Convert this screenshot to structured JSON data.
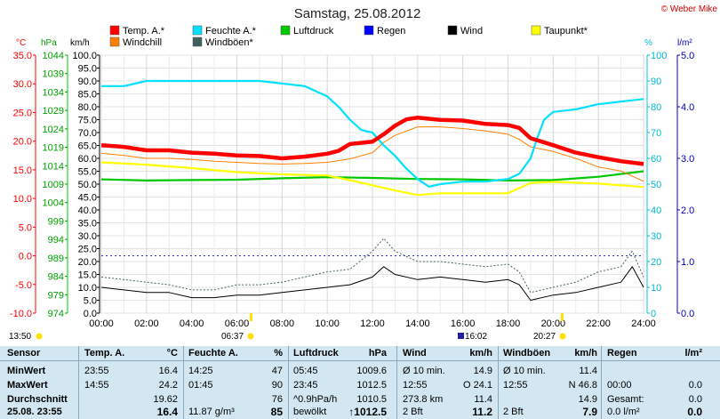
{
  "title": "Samstag, 25.08.2012",
  "copyright": "© Weber Mike",
  "axis_units": {
    "temp": "°C",
    "pressure": "hPa",
    "wind": "km/h",
    "humidity": "%",
    "rain": "l/m²"
  },
  "sun": {
    "rise_left": "13:50",
    "sunrise": "06:37",
    "sunset": "20:27",
    "moon": "16:02"
  },
  "colors": {
    "temp": "#ff0000",
    "humidity": "#00e0ff",
    "pressure": "#00c800",
    "rain": "#0000ff",
    "wind": "#000000",
    "dewpoint": "#ffff00",
    "windchill": "#ff8000",
    "gust": "#406060",
    "pressure_axis": "#00c800",
    "temp_axis": "#ff0000",
    "rain_axis": "#0000c0"
  },
  "chart_data": {
    "type": "line",
    "title": "Samstag, 25.08.2012",
    "x_ticks": [
      "00:00",
      "02:00",
      "04:00",
      "06:00",
      "08:00",
      "10:00",
      "12:00",
      "14:00",
      "16:00",
      "18:00",
      "20:00",
      "22:00",
      "24:00"
    ],
    "left_axes": {
      "temp_ticks": [
        "35.0",
        "30.0",
        "25.0",
        "20.0",
        "15.0",
        "10.0",
        "5.0",
        "0.0",
        "-5.0",
        "-10.0"
      ],
      "temp_range": [
        -10,
        35
      ],
      "pressure_ticks": [
        "1044",
        "1039",
        "1034",
        "1029",
        "1024",
        "1019",
        "1014",
        "1009",
        "1004",
        "999",
        "994",
        "989",
        "984",
        "979",
        "974"
      ],
      "pressure_range": [
        974,
        1044
      ],
      "wind_ticks": [
        "100.0",
        "95.0",
        "90.0",
        "85.0",
        "80.0",
        "75.0",
        "70.0",
        "65.0",
        "60.0",
        "55.0",
        "50.0",
        "45.0",
        "40.0",
        "35.0",
        "30.0",
        "25.0",
        "20.0",
        "15.0",
        "10.0",
        "5.0",
        "0.0"
      ],
      "wind_range": [
        0,
        100
      ]
    },
    "right_axes": {
      "humidity_ticks": [
        "100",
        "90",
        "80",
        "70",
        "60",
        "50",
        "40",
        "30",
        "20",
        "10",
        "0"
      ],
      "humidity_range": [
        0,
        100
      ],
      "rain_ticks": [
        "5.0",
        "4.0",
        "3.0",
        "2.0",
        "1.0",
        "0.0"
      ],
      "rain_range": [
        0,
        5
      ]
    },
    "legend": [
      {
        "key": "temp",
        "label": "Temp. A.*"
      },
      {
        "key": "humidity",
        "label": "Feuchte A.*"
      },
      {
        "key": "pressure",
        "label": "Luftdruck"
      },
      {
        "key": "rain",
        "label": "Regen"
      },
      {
        "key": "wind",
        "label": "Wind"
      },
      {
        "key": "dewpoint",
        "label": "Taupunkt*"
      },
      {
        "key": "windchill",
        "label": "Windchill"
      },
      {
        "key": "gust",
        "label": "Windböen*"
      }
    ],
    "series": [
      {
        "name": "Temp. A.*",
        "key": "temp",
        "axis": "temp",
        "x": [
          0,
          1,
          2,
          3,
          4,
          5,
          6,
          7,
          8,
          9,
          10,
          10.5,
          11,
          12,
          12.5,
          13,
          13.5,
          14,
          15,
          16,
          17,
          18,
          18.5,
          19,
          20,
          21,
          22,
          23,
          24
        ],
        "values": [
          19.3,
          19.0,
          18.4,
          18.4,
          18.0,
          17.8,
          17.5,
          17.4,
          17.0,
          17.3,
          17.8,
          18.3,
          19.5,
          19.9,
          21.2,
          22.7,
          23.8,
          24.1,
          23.7,
          23.6,
          23.0,
          22.8,
          22.3,
          20.5,
          19.3,
          18.0,
          17.2,
          16.5,
          16.0
        ]
      },
      {
        "name": "Windchill",
        "key": "windchill",
        "axis": "temp",
        "x": [
          0,
          1,
          2,
          3,
          4,
          5,
          6,
          7,
          8,
          9,
          10,
          11,
          12,
          12.5,
          13,
          14,
          15,
          16,
          17,
          18,
          18.5,
          19,
          20,
          21,
          22,
          23,
          24
        ],
        "values": [
          17.9,
          17.5,
          17.0,
          17.0,
          16.8,
          16.5,
          16.3,
          16.1,
          16.0,
          16.1,
          16.3,
          16.9,
          18.0,
          19.8,
          21.0,
          22.5,
          22.5,
          22.2,
          21.8,
          21.2,
          20.3,
          19.0,
          18.2,
          17.0,
          15.5,
          14.8,
          13.0
        ]
      },
      {
        "name": "Taupunkt*",
        "key": "dewpoint",
        "axis": "temp",
        "x": [
          0,
          2,
          4,
          6,
          8,
          10,
          11,
          12,
          13,
          14,
          15,
          16,
          17,
          18,
          19,
          20,
          22,
          24
        ],
        "values": [
          16.3,
          15.9,
          15.3,
          14.6,
          14.2,
          14.0,
          13.2,
          12.3,
          11.4,
          10.6,
          10.9,
          10.9,
          10.9,
          10.9,
          12.7,
          12.9,
          12.6,
          12.0
        ]
      },
      {
        "name": "Luftdruck",
        "key": "pressure",
        "axis": "pressure",
        "x": [
          0,
          2,
          4,
          6,
          8,
          10,
          12,
          14,
          16,
          18,
          20,
          22,
          24
        ],
        "values": [
          1010.3,
          1010.0,
          1010.1,
          1010.2,
          1010.6,
          1010.9,
          1010.7,
          1010.4,
          1010.3,
          1010.0,
          1010.1,
          1011.0,
          1012.5
        ]
      },
      {
        "name": "Feuchte A.*",
        "key": "humidity",
        "axis": "humidity",
        "x": [
          0,
          1,
          2,
          3,
          4,
          5,
          6,
          7,
          8,
          9,
          9.5,
          10,
          10.5,
          11,
          11.5,
          12,
          12.5,
          13,
          13.5,
          14,
          14.5,
          15,
          16,
          17,
          18,
          18.5,
          19,
          19.3,
          19.6,
          20,
          21,
          22,
          23,
          24
        ],
        "values": [
          88,
          88,
          90,
          90,
          90,
          90,
          90,
          90,
          89,
          88,
          86,
          84,
          80,
          75,
          71,
          70,
          65,
          61,
          56,
          52,
          49,
          50,
          51,
          51,
          52,
          54,
          60,
          68,
          75,
          78,
          79,
          81,
          82,
          83
        ]
      },
      {
        "name": "Wind",
        "key": "wind",
        "axis": "wind",
        "x": [
          0,
          1,
          2,
          3,
          4,
          5,
          6,
          7,
          8,
          9,
          10,
          11,
          12,
          12.5,
          13,
          14,
          15,
          16,
          17,
          18,
          18.5,
          19,
          20,
          21,
          22,
          23,
          23.5,
          24
        ],
        "values": [
          10,
          9,
          8,
          8,
          6,
          6,
          7,
          7,
          8,
          9,
          10,
          11,
          14,
          18,
          15,
          13,
          14,
          13,
          12,
          13,
          11,
          5,
          7,
          8,
          10,
          12,
          18,
          10
        ]
      },
      {
        "name": "Windböen*",
        "key": "gust",
        "axis": "wind",
        "x": [
          0,
          1,
          2,
          3,
          4,
          5,
          6,
          7,
          8,
          9,
          10,
          11,
          12,
          12.5,
          13,
          14,
          15,
          16,
          17,
          18,
          18.5,
          19,
          20,
          21,
          22,
          23,
          23.5,
          24
        ],
        "values": [
          14,
          13,
          12,
          11,
          9,
          9,
          11,
          11,
          12,
          14,
          16,
          17,
          24,
          29,
          24,
          20,
          20,
          19,
          18,
          19,
          16,
          8,
          10,
          12,
          16,
          18,
          24,
          14
        ]
      }
    ],
    "xlabel": "",
    "ylabel": "",
    "grid": true,
    "legend_position": "top"
  },
  "stats": {
    "headers": {
      "sensor": "Sensor",
      "temp": "Temp. A.",
      "temp_unit": "°C",
      "hum": "Feuchte A.",
      "hum_unit": "%",
      "press": "Luftdruck",
      "press_unit": "hPa",
      "wind": "Wind",
      "wind_unit": "km/h",
      "gust": "Windböen",
      "gust_unit": "km/h",
      "rain": "Regen",
      "rain_unit": "l/m²"
    },
    "rows": [
      {
        "label": "MinWert",
        "temp_time": "23:55",
        "temp_val": "16.4",
        "hum_time": "14:25",
        "hum_val": "47",
        "press_time": "05:45",
        "press_val": "1009.6",
        "wind_label": "Ø 10 min.",
        "wind_val": "14.9",
        "gust_label": "Ø 10 min.",
        "gust_val": "11.4",
        "rain_label": "",
        "rain_val": ""
      },
      {
        "label": "MaxWert",
        "temp_time": "14:55",
        "temp_val": "24.2",
        "hum_time": "01:45",
        "hum_val": "90",
        "press_time": "23:45",
        "press_val": "1012.5",
        "wind_label": "12:55",
        "wind_val": "O 24.1",
        "gust_label": "12:55",
        "gust_val": "N 46.8",
        "rain_label": "00:00",
        "rain_val": "0.0"
      },
      {
        "label": "Durchschnitt",
        "temp_time": "",
        "temp_val": "19.62",
        "hum_time": "",
        "hum_val": "76",
        "press_time": "^0.9hPa/h",
        "press_val": "1010.5",
        "wind_label": "273.8 km",
        "wind_val": "11.4",
        "gust_label": "",
        "gust_val": "14.9",
        "rain_label": "Gesamt:",
        "rain_val": "0.0"
      },
      {
        "label": "25.08. 23:55",
        "temp_time": "",
        "temp_val": "16.4",
        "hum_time": "11.87 g/m³",
        "hum_val": "85",
        "press_time": "bewölkt",
        "press_val": "↑1012.5",
        "wind_label": "2 Bft",
        "wind_val": "11.2",
        "gust_label": "2 Bft",
        "gust_val": "7.9",
        "rain_label": "0.0 l/m²",
        "rain_val": "0.0"
      }
    ]
  }
}
